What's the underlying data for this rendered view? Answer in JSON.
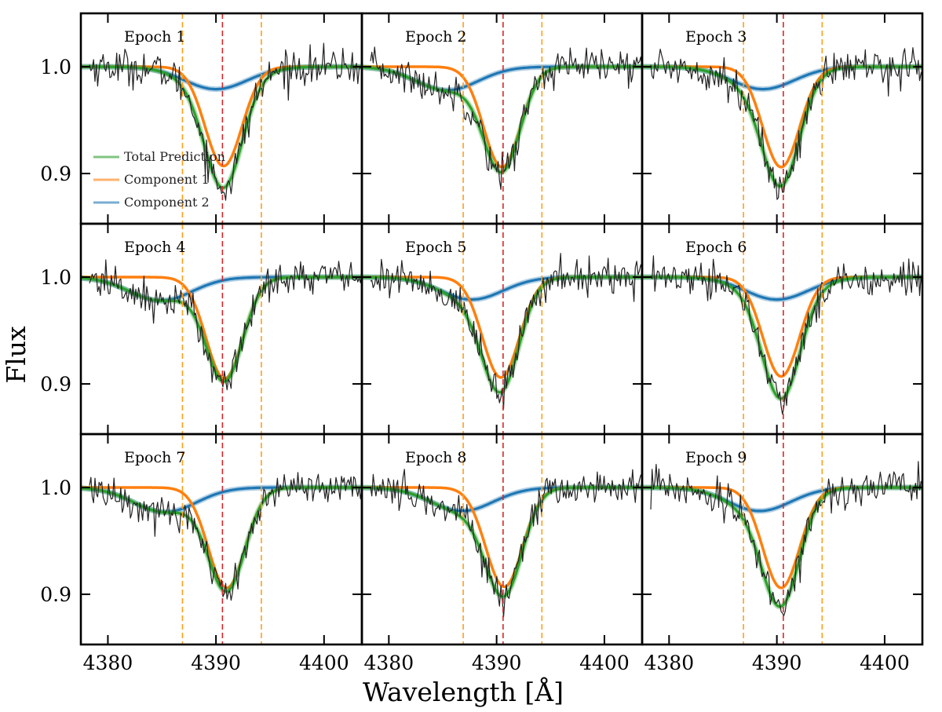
{
  "chart_data": {
    "type": "line",
    "xlabel": "Wavelength [Å]",
    "ylabel": "Flux",
    "xlim": [
      4377.5,
      4403.5
    ],
    "ylim": [
      0.853,
      1.05
    ],
    "x_ticks": [
      4380,
      4390,
      4400
    ],
    "x_tick_labels": [
      "4380",
      "4390",
      "4400"
    ],
    "y_ticks": [
      0.9,
      1.0
    ],
    "y_tick_labels": [
      "0.9",
      "1.0"
    ],
    "reference_line": {
      "x": 4390.6,
      "color": "#d62728",
      "style": "dashed"
    },
    "window_lines": {
      "x": [
        4386.9,
        4394.2
      ],
      "color": "#ff9f1c",
      "style": "dashed"
    },
    "legend": {
      "position": "bottom-left of panel 1",
      "entries": [
        {
          "label": "Total Prediction",
          "color": "#2ca02c"
        },
        {
          "label": "Component 1",
          "color": "#ff7f0e"
        },
        {
          "label": "Component 2",
          "color": "#1f77b4"
        }
      ]
    },
    "series_colors": {
      "observed": "#222222",
      "total": "#2ca02c",
      "component1": "#ff7f0e",
      "component2": "#1f77b4"
    },
    "component_model": "gaussian absorption: flux = 1 - depth * exp(-(x-center)^2 / (2 sigma^2))",
    "panels": [
      {
        "label": "Epoch 1",
        "component1": {
          "center": 4390.7,
          "depth": 0.093,
          "sigma": 1.7
        },
        "component2": {
          "center": 4390.0,
          "depth": 0.021,
          "sigma": 2.9
        }
      },
      {
        "label": "Epoch 2",
        "component1": {
          "center": 4390.5,
          "depth": 0.094,
          "sigma": 1.7
        },
        "component2": {
          "center": 4385.4,
          "depth": 0.022,
          "sigma": 2.9
        }
      },
      {
        "label": "Epoch 3",
        "component1": {
          "center": 4390.4,
          "depth": 0.094,
          "sigma": 1.7
        },
        "component2": {
          "center": 4388.7,
          "depth": 0.021,
          "sigma": 2.9
        }
      },
      {
        "label": "Epoch 4",
        "component1": {
          "center": 4390.8,
          "depth": 0.095,
          "sigma": 1.7
        },
        "component2": {
          "center": 4384.9,
          "depth": 0.022,
          "sigma": 2.9
        }
      },
      {
        "label": "Epoch 5",
        "component1": {
          "center": 4390.4,
          "depth": 0.094,
          "sigma": 1.7
        },
        "component2": {
          "center": 4387.7,
          "depth": 0.021,
          "sigma": 2.9
        }
      },
      {
        "label": "Epoch 6",
        "component1": {
          "center": 4390.4,
          "depth": 0.093,
          "sigma": 1.7
        },
        "component2": {
          "center": 4390.0,
          "depth": 0.021,
          "sigma": 2.9
        }
      },
      {
        "label": "Epoch 7",
        "component1": {
          "center": 4391.0,
          "depth": 0.094,
          "sigma": 1.7
        },
        "component2": {
          "center": 4385.3,
          "depth": 0.023,
          "sigma": 2.9
        }
      },
      {
        "label": "Epoch 8",
        "component1": {
          "center": 4390.7,
          "depth": 0.093,
          "sigma": 1.7
        },
        "component2": {
          "center": 4386.8,
          "depth": 0.022,
          "sigma": 2.9
        }
      },
      {
        "label": "Epoch 9",
        "component1": {
          "center": 4390.4,
          "depth": 0.094,
          "sigma": 1.7
        },
        "component2": {
          "center": 4388.4,
          "depth": 0.022,
          "sigma": 2.9
        }
      }
    ]
  }
}
